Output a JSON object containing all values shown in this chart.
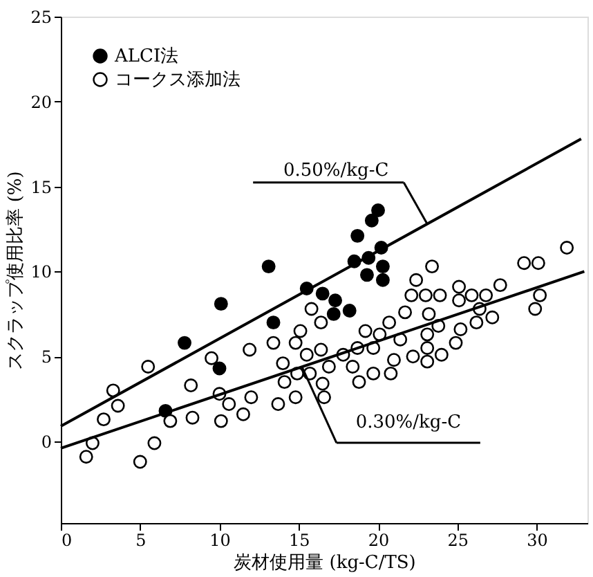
{
  "chart_data": {
    "type": "scatter",
    "xlabel": "炭材使用量 (kg-C/TS)",
    "ylabel": "スクラップ使用比率 (%)",
    "xlim": [
      0,
      33.2
    ],
    "ylim": [
      -4.8,
      25
    ],
    "xticks": [
      0,
      5,
      10,
      15,
      20,
      25,
      30
    ],
    "yticks": [
      0,
      5,
      10,
      15,
      20,
      25
    ],
    "grid": false,
    "legend": "top left",
    "series": [
      {
        "name": "ALCI法",
        "marker": "circle",
        "color": "#000000",
        "x": [
          6.6,
          7.8,
          10.0,
          10.1,
          13.1,
          13.4,
          15.5,
          16.5,
          17.3,
          17.2,
          18.2,
          18.5,
          18.7,
          19.4,
          19.3,
          19.6,
          20.0,
          20.2,
          20.3,
          20.3
        ],
        "values": [
          1.8,
          5.8,
          4.3,
          8.1,
          10.3,
          7.0,
          9.0,
          8.7,
          8.3,
          7.5,
          7.7,
          10.6,
          12.1,
          10.8,
          9.8,
          13.0,
          13.6,
          11.4,
          10.3,
          9.5
        ]
      },
      {
        "name": "コークス添加法",
        "marker": "circle",
        "color": "#000000",
        "x": [
          1.6,
          2.0,
          2.7,
          3.3,
          3.6,
          5.0,
          5.5,
          5.9,
          6.9,
          8.2,
          8.3,
          9.5,
          10.1,
          10.0,
          10.6,
          11.5,
          12.0,
          11.9,
          13.4,
          13.7,
          14.0,
          14.1,
          14.8,
          15.1,
          14.8,
          14.9,
          15.5,
          15.8,
          15.7,
          16.4,
          16.4,
          16.5,
          16.6,
          16.9,
          17.8,
          18.4,
          18.7,
          18.8,
          19.2,
          19.7,
          19.7,
          20.1,
          20.7,
          20.8,
          21.0,
          21.4,
          21.7,
          22.1,
          22.4,
          22.2,
          23.0,
          23.2,
          23.1,
          23.1,
          23.1,
          23.4,
          23.8,
          23.9,
          24.0,
          25.1,
          25.1,
          25.2,
          24.9,
          25.9,
          26.2,
          26.4,
          26.8,
          27.2,
          27.7,
          29.2,
          30.1,
          30.2,
          29.9,
          31.9
        ],
        "values": [
          -0.9,
          -0.1,
          1.3,
          3.0,
          2.1,
          -1.2,
          4.4,
          -0.1,
          1.2,
          3.3,
          1.4,
          4.9,
          1.2,
          2.8,
          2.2,
          1.6,
          2.6,
          5.4,
          5.8,
          2.2,
          4.6,
          3.5,
          5.8,
          6.5,
          2.6,
          4.0,
          5.1,
          7.8,
          4.0,
          7.0,
          5.4,
          3.4,
          2.6,
          4.4,
          5.1,
          4.4,
          5.5,
          3.5,
          6.5,
          5.5,
          4.0,
          6.3,
          7.0,
          4.0,
          4.8,
          6.0,
          7.6,
          8.6,
          9.5,
          5.0,
          8.6,
          7.5,
          6.3,
          5.5,
          4.7,
          10.3,
          6.8,
          8.6,
          5.1,
          9.1,
          8.3,
          6.6,
          5.8,
          8.6,
          7.0,
          7.8,
          8.6,
          7.3,
          9.2,
          10.5,
          10.5,
          8.6,
          7.8,
          11.4
        ]
      },
      {
        "type": "line",
        "marker": "none",
        "line_style": "solid",
        "color": "#000000",
        "x": [
          0,
          32.8
        ],
        "values": [
          0.9,
          17.8
        ]
      },
      {
        "type": "line",
        "marker": "none",
        "line_style": "solid",
        "color": "#000000",
        "x": [
          0,
          33.0
        ],
        "values": [
          -0.4,
          10.0
        ]
      }
    ],
    "annotations": [
      {
        "text": "0.50%/kg-C",
        "x": 23.1,
        "y": 12.8
      },
      {
        "text": "0.30%/kg-C",
        "x": 15.2,
        "y": 4.4
      }
    ]
  }
}
